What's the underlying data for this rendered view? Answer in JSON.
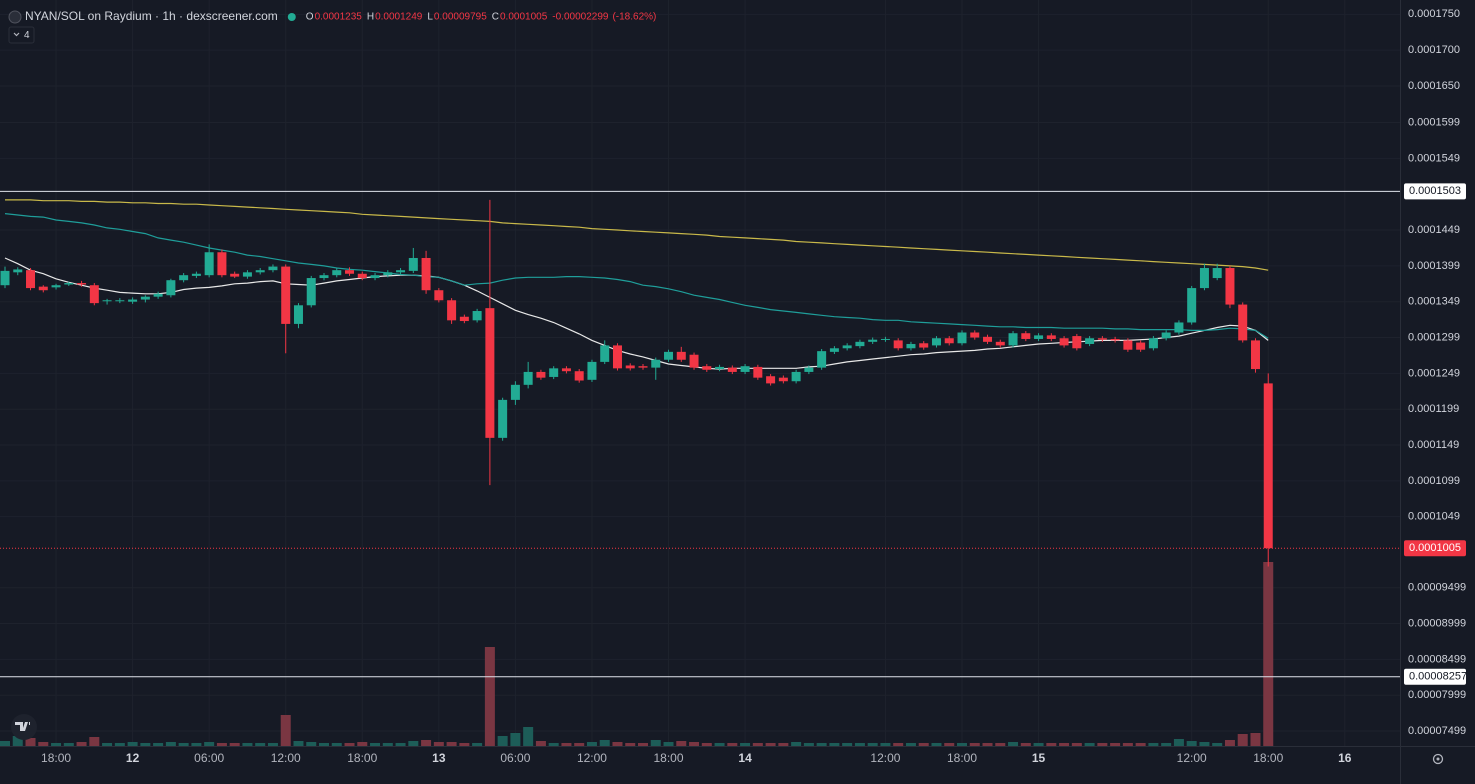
{
  "chart_data": {
    "type": "candlestick",
    "title": "NYAN/SOL on Raydium · 1h · dexscreener.com",
    "ohlc_labels": [
      "O",
      "H",
      "L",
      "C"
    ],
    "change": -2.299e-05,
    "change_pct": "(-18.62%)",
    "indicator_count": 4,
    "up_color": "#22ab94",
    "down_color": "#f23645",
    "up_volume_color": "#1d5d58",
    "down_volume_color": "#7a3642",
    "grid": true,
    "ylim": [
      7.29e-05,
      0.000177
    ],
    "yticks": [
      {
        "value": 0.000175,
        "label": "0.0001750"
      },
      {
        "value": 0.00017,
        "label": "0.0001700"
      },
      {
        "value": 0.000165,
        "label": "0.0001650"
      },
      0.0001599,
      0.0001549,
      0.0001449,
      0.0001399,
      0.0001349,
      0.0001299,
      0.0001249,
      0.0001199,
      0.0001149,
      0.0001099,
      0.0001049,
      9.499e-05,
      8.999e-05,
      8.499e-05,
      7.999e-05,
      7.499e-05
    ],
    "price_lines": [
      0.0001503,
      8.257e-05
    ],
    "categories": [
      null,
      null,
      null,
      null,
      "18:00",
      null,
      null,
      null,
      null,
      null,
      "12",
      null,
      null,
      null,
      null,
      null,
      "06:00",
      null,
      null,
      null,
      null,
      null,
      "12:00",
      null,
      null,
      null,
      null,
      null,
      "18:00",
      null,
      null,
      null,
      null,
      null,
      "13",
      null,
      null,
      null,
      null,
      null,
      "06:00",
      null,
      null,
      null,
      null,
      null,
      "12:00",
      null,
      null,
      null,
      null,
      null,
      "18:00",
      null,
      null,
      null,
      null,
      null,
      "14",
      null,
      null,
      null,
      null,
      null,
      null,
      null,
      null,
      null,
      null,
      "12:00",
      null,
      null,
      null,
      null,
      null,
      "18:00",
      null,
      null,
      null,
      null,
      null,
      "15",
      null,
      null,
      null,
      null,
      null,
      null,
      null,
      null,
      null,
      null,
      null,
      "12:00",
      null,
      null,
      null,
      null,
      null,
      "18:00",
      null,
      null,
      null,
      null,
      null,
      "16"
    ],
    "candles": [
      [
        0.0001372,
        0.0001398,
        0.0001368,
        0.0001392
      ],
      [
        0.000139,
        0.0001397,
        0.0001386,
        0.0001394
      ],
      [
        0.0001393,
        0.0001396,
        0.0001365,
        0.0001368
      ],
      [
        0.000137,
        0.0001372,
        0.0001362,
        0.0001365
      ],
      [
        0.0001369,
        0.0001374,
        0.0001366,
        0.0001372
      ],
      [
        0.0001373,
        0.0001377,
        0.0001371,
        0.0001375
      ],
      [
        0.0001375,
        0.0001378,
        0.000137,
        0.0001373
      ],
      [
        0.0001372,
        0.0001375,
        0.0001344,
        0.0001347
      ],
      [
        0.000135,
        0.0001353,
        0.0001345,
        0.0001351
      ],
      [
        0.000135,
        0.0001354,
        0.0001347,
        0.0001351
      ],
      [
        0.0001349,
        0.0001355,
        0.0001346,
        0.0001352
      ],
      [
        0.0001352,
        0.0001358,
        0.0001348,
        0.0001356
      ],
      [
        0.0001356,
        0.0001363,
        0.0001353,
        0.000136
      ],
      [
        0.0001358,
        0.0001381,
        0.0001355,
        0.0001379
      ],
      [
        0.0001379,
        0.0001389,
        0.0001376,
        0.0001386
      ],
      [
        0.0001385,
        0.0001391,
        0.0001382,
        0.0001388
      ],
      [
        0.0001386,
        0.0001429,
        0.0001383,
        0.0001418
      ],
      [
        0.0001418,
        0.0001422,
        0.0001383,
        0.0001386
      ],
      [
        0.0001388,
        0.0001391,
        0.0001382,
        0.0001384
      ],
      [
        0.0001384,
        0.0001393,
        0.0001381,
        0.000139
      ],
      [
        0.000139,
        0.0001396,
        0.0001387,
        0.0001393
      ],
      [
        0.0001393,
        0.0001401,
        0.000139,
        0.0001398
      ],
      [
        0.0001398,
        0.0001401,
        0.0001277,
        0.0001318
      ],
      [
        0.0001318,
        0.0001347,
        0.0001312,
        0.0001344
      ],
      [
        0.0001344,
        0.0001385,
        0.0001341,
        0.0001382
      ],
      [
        0.0001382,
        0.0001389,
        0.0001379,
        0.0001386
      ],
      [
        0.0001386,
        0.0001396,
        0.0001383,
        0.0001393
      ],
      [
        0.0001393,
        0.0001397,
        0.0001385,
        0.0001388
      ],
      [
        0.0001388,
        0.0001391,
        0.0001379,
        0.0001382
      ],
      [
        0.0001382,
        0.0001389,
        0.0001379,
        0.0001386
      ],
      [
        0.0001386,
        0.0001393,
        0.0001383,
        0.000139
      ],
      [
        0.000139,
        0.0001396,
        0.0001386,
        0.0001393
      ],
      [
        0.0001392,
        0.0001424,
        0.0001389,
        0.000141
      ],
      [
        0.000141,
        0.000142,
        0.000136,
        0.0001365
      ],
      [
        0.0001365,
        0.0001368,
        0.0001348,
        0.0001351
      ],
      [
        0.0001351,
        0.0001354,
        0.0001318,
        0.0001323
      ],
      [
        0.0001328,
        0.0001331,
        0.0001319,
        0.0001322
      ],
      [
        0.0001323,
        0.0001339,
        0.000132,
        0.0001336
      ],
      [
        0.000134,
        0.0001491,
        0.0001093,
        0.0001159
      ],
      [
        0.0001159,
        0.0001215,
        0.0001155,
        0.0001212
      ],
      [
        0.0001212,
        0.0001238,
        0.0001205,
        0.0001233
      ],
      [
        0.0001233,
        0.0001265,
        0.0001228,
        0.0001251
      ],
      [
        0.0001251,
        0.0001254,
        0.000124,
        0.0001243
      ],
      [
        0.0001244,
        0.0001259,
        0.0001241,
        0.0001256
      ],
      [
        0.0001256,
        0.0001259,
        0.0001249,
        0.0001252
      ],
      [
        0.0001252,
        0.0001255,
        0.0001236,
        0.0001239
      ],
      [
        0.000124,
        0.0001268,
        0.0001237,
        0.0001265
      ],
      [
        0.0001265,
        0.0001295,
        0.0001262,
        0.0001288
      ],
      [
        0.0001288,
        0.0001291,
        0.0001253,
        0.0001256
      ],
      [
        0.000126,
        0.0001263,
        0.0001253,
        0.0001256
      ],
      [
        0.0001259,
        0.0001262,
        0.0001254,
        0.0001257
      ],
      [
        0.0001257,
        0.0001271,
        0.000124,
        0.0001268
      ],
      [
        0.0001268,
        0.0001282,
        0.0001265,
        0.0001279
      ],
      [
        0.0001279,
        0.0001286,
        0.0001265,
        0.0001268
      ],
      [
        0.0001275,
        0.0001278,
        0.0001254,
        0.0001257
      ],
      [
        0.0001259,
        0.0001262,
        0.0001251,
        0.0001254
      ],
      [
        0.0001255,
        0.0001261,
        0.0001252,
        0.0001258
      ],
      [
        0.0001257,
        0.000126,
        0.0001248,
        0.0001251
      ],
      [
        0.0001251,
        0.0001262,
        0.0001248,
        0.0001259
      ],
      [
        0.0001258,
        0.0001261,
        0.000124,
        0.0001243
      ],
      [
        0.0001245,
        0.0001248,
        0.0001232,
        0.0001235
      ],
      [
        0.0001243,
        0.0001246,
        0.0001235,
        0.0001238
      ],
      [
        0.0001238,
        0.0001254,
        0.0001235,
        0.0001251
      ],
      [
        0.0001251,
        0.000126,
        0.0001248,
        0.0001257
      ],
      [
        0.0001257,
        0.0001283,
        0.0001254,
        0.000128
      ],
      [
        0.0001279,
        0.0001287,
        0.0001276,
        0.0001284
      ],
      [
        0.0001284,
        0.0001291,
        0.0001281,
        0.0001288
      ],
      [
        0.0001287,
        0.0001296,
        0.0001284,
        0.0001293
      ],
      [
        0.0001293,
        0.0001299,
        0.000129,
        0.0001296
      ],
      [
        0.0001296,
        0.00013,
        0.0001293,
        0.0001297
      ],
      [
        0.0001295,
        0.0001298,
        0.0001281,
        0.0001284
      ],
      [
        0.0001284,
        0.0001293,
        0.0001281,
        0.000129
      ],
      [
        0.0001291,
        0.0001294,
        0.0001282,
        0.0001285
      ],
      [
        0.0001288,
        0.0001301,
        0.0001285,
        0.0001298
      ],
      [
        0.0001298,
        0.0001301,
        0.0001288,
        0.0001291
      ],
      [
        0.0001291,
        0.0001309,
        0.0001288,
        0.0001306
      ],
      [
        0.0001306,
        0.0001309,
        0.0001296,
        0.0001299
      ],
      [
        0.00013,
        0.0001303,
        0.000129,
        0.0001293
      ],
      [
        0.0001293,
        0.0001296,
        0.0001285,
        0.0001288
      ],
      [
        0.0001288,
        0.0001308,
        0.0001285,
        0.0001305
      ],
      [
        0.0001305,
        0.0001308,
        0.0001294,
        0.0001297
      ],
      [
        0.0001297,
        0.0001305,
        0.0001294,
        0.0001302
      ],
      [
        0.0001302,
        0.0001305,
        0.0001294,
        0.0001297
      ],
      [
        0.0001298,
        0.0001301,
        0.0001285,
        0.0001288
      ],
      [
        0.0001301,
        0.0001304,
        0.0001281,
        0.0001284
      ],
      [
        0.000129,
        0.0001301,
        0.0001287,
        0.0001298
      ],
      [
        0.0001298,
        0.0001301,
        0.0001293,
        0.0001296
      ],
      [
        0.0001297,
        0.00013,
        0.0001292,
        0.0001295
      ],
      [
        0.0001295,
        0.0001298,
        0.0001279,
        0.0001282
      ],
      [
        0.0001292,
        0.0001295,
        0.0001279,
        0.0001282
      ],
      [
        0.0001284,
        0.0001301,
        0.0001281,
        0.0001298
      ],
      [
        0.0001298,
        0.0001309,
        0.0001295,
        0.0001306
      ],
      [
        0.0001306,
        0.0001323,
        0.0001303,
        0.000132
      ],
      [
        0.000132,
        0.0001371,
        0.0001317,
        0.0001368
      ],
      [
        0.0001368,
        0.0001402,
        0.0001365,
        0.0001396
      ],
      [
        0.0001382,
        0.0001402,
        0.0001379,
        0.0001396
      ],
      [
        0.0001396,
        0.0001399,
        0.000134,
        0.0001345
      ],
      [
        0.0001345,
        0.0001348,
        0.0001292,
        0.0001295
      ],
      [
        0.0001295,
        0.0001298,
        0.000125,
        0.0001255
      ],
      [
        0.0001235,
        0.0001249,
        9.795e-05,
        0.0001005
      ],
      null,
      null,
      null,
      null,
      null,
      null
    ],
    "volume": [
      5,
      10,
      8,
      4,
      3,
      3,
      4,
      9,
      3,
      3,
      4,
      3,
      3,
      4,
      3,
      3,
      4,
      3,
      3,
      3,
      3,
      3,
      31,
      5,
      4,
      3,
      3,
      3,
      4,
      3,
      3,
      3,
      5,
      6,
      4,
      4,
      3,
      3,
      99,
      10,
      13,
      19,
      5,
      3,
      3,
      3,
      4,
      6,
      4,
      3,
      3,
      6,
      4,
      5,
      4,
      3,
      3,
      3,
      3,
      3,
      3,
      3,
      4,
      3,
      3,
      3,
      3,
      3,
      3,
      3,
      3,
      3,
      3,
      3,
      3,
      3,
      3,
      3,
      3,
      4,
      3,
      3,
      3,
      3,
      3,
      3,
      3,
      3,
      3,
      3,
      3,
      3,
      7,
      5,
      4,
      3,
      6,
      12,
      13,
      184,
      null,
      null,
      null,
      null,
      null,
      null
    ],
    "series": [
      {
        "color": "#e8e8e8",
        "values": [
          0.000141,
          0.0001402,
          0.0001393,
          0.0001388,
          0.0001381,
          0.0001376,
          0.0001372,
          0.0001368,
          0.0001365,
          0.0001362,
          0.0001361,
          0.000136,
          0.000136,
          0.0001362,
          0.0001366,
          0.0001368,
          0.0001369,
          0.0001371,
          0.0001374,
          0.0001375,
          0.0001377,
          0.0001378,
          0.0001374,
          0.0001373,
          0.0001372,
          0.0001375,
          0.0001378,
          0.000138,
          0.0001382,
          0.0001384,
          0.0001385,
          0.0001386,
          0.0001386,
          0.0001385,
          0.0001383,
          0.0001378,
          0.0001372,
          0.0001364,
          0.0001355,
          0.0001346,
          0.0001337,
          0.0001331,
          0.0001326,
          0.000132,
          0.0001312,
          0.0001304,
          0.0001295,
          0.0001288,
          0.0001281,
          0.0001276,
          0.0001272,
          0.0001267,
          0.0001262,
          0.000126,
          0.0001258,
          0.0001256,
          0.0001255,
          0.0001256,
          0.0001256,
          0.0001256,
          0.0001256,
          0.0001256,
          0.0001256,
          0.0001258,
          0.0001259,
          0.0001262,
          0.0001265,
          0.0001267,
          0.0001269,
          0.0001271,
          0.0001273,
          0.0001275,
          0.0001276,
          0.0001278,
          0.0001279,
          0.000128,
          0.0001281,
          0.0001283,
          0.0001284,
          0.0001286,
          0.0001288,
          0.000129,
          0.0001291,
          0.0001292,
          0.0001293,
          0.0001294,
          0.0001295,
          0.0001295,
          0.0001295,
          0.0001296,
          0.0001297,
          0.0001299,
          0.0001301,
          0.0001305,
          0.0001309,
          0.0001313,
          0.0001316,
          0.0001315,
          0.0001309,
          0.0001295,
          null,
          null,
          null,
          null,
          null,
          null
        ]
      },
      {
        "color": "#1f9e9a",
        "values": [
          0.0001472,
          0.000147,
          0.0001468,
          0.0001467,
          0.0001463,
          0.0001461,
          0.0001459,
          0.0001456,
          0.0001452,
          0.000145,
          0.0001447,
          0.0001444,
          0.0001438,
          0.0001435,
          0.0001432,
          0.0001428,
          0.0001424,
          0.0001421,
          0.0001418,
          0.0001414,
          0.0001412,
          0.0001409,
          0.0001406,
          0.0001403,
          0.0001401,
          0.0001399,
          0.0001396,
          0.0001394,
          0.0001393,
          0.0001391,
          0.0001389,
          0.0001387,
          0.0001386,
          0.0001384,
          0.0001383,
          0.0001378,
          0.0001372,
          0.0001374,
          0.0001375,
          0.0001379,
          0.0001382,
          0.0001383,
          0.0001383,
          0.0001383,
          0.0001384,
          0.0001384,
          0.0001383,
          0.0001382,
          0.000138,
          0.0001377,
          0.0001372,
          0.000137,
          0.0001367,
          0.0001363,
          0.0001358,
          0.0001355,
          0.0001352,
          0.0001348,
          0.0001344,
          0.0001341,
          0.0001338,
          0.0001336,
          0.0001334,
          0.0001332,
          0.000133,
          0.0001328,
          0.0001327,
          0.0001326,
          0.0001324,
          0.0001323,
          0.0001323,
          0.0001321,
          0.000132,
          0.0001319,
          0.0001318,
          0.0001317,
          0.0001316,
          0.0001315,
          0.0001314,
          0.0001314,
          0.0001313,
          0.0001313,
          0.0001313,
          0.0001312,
          0.0001312,
          0.0001312,
          0.0001312,
          0.0001311,
          0.0001311,
          0.000131,
          0.000131,
          0.000131,
          0.000131,
          0.0001309,
          0.0001309,
          0.000131,
          0.0001312,
          0.0001311,
          0.0001309,
          0.0001298,
          null,
          null,
          null,
          null,
          null,
          null
        ]
      },
      {
        "color": "#c9b94a",
        "values": [
          0.0001491,
          0.0001491,
          0.0001491,
          0.000149,
          0.000149,
          0.000149,
          0.0001489,
          0.0001489,
          0.0001488,
          0.0001488,
          0.0001487,
          0.0001487,
          0.0001486,
          0.0001486,
          0.0001485,
          0.0001485,
          0.0001484,
          0.0001483,
          0.0001482,
          0.0001481,
          0.000148,
          0.0001479,
          0.0001478,
          0.0001477,
          0.0001476,
          0.0001475,
          0.0001474,
          0.0001473,
          0.0001471,
          0.000147,
          0.0001469,
          0.0001468,
          0.0001467,
          0.0001466,
          0.0001465,
          0.0001464,
          0.0001463,
          0.0001462,
          0.0001461,
          0.0001459,
          0.0001458,
          0.0001457,
          0.0001456,
          0.0001455,
          0.0001454,
          0.0001453,
          0.0001451,
          0.000145,
          0.0001449,
          0.0001448,
          0.0001447,
          0.0001446,
          0.0001445,
          0.0001444,
          0.0001443,
          0.0001442,
          0.000144,
          0.0001439,
          0.0001438,
          0.0001437,
          0.0001436,
          0.0001435,
          0.0001433,
          0.0001432,
          0.0001431,
          0.000143,
          0.0001429,
          0.0001428,
          0.0001427,
          0.0001426,
          0.0001425,
          0.0001424,
          0.0001423,
          0.0001422,
          0.0001421,
          0.000142,
          0.0001419,
          0.0001418,
          0.0001417,
          0.0001416,
          0.0001415,
          0.0001414,
          0.0001413,
          0.0001412,
          0.0001411,
          0.000141,
          0.0001409,
          0.0001408,
          0.0001407,
          0.0001406,
          0.0001405,
          0.0001404,
          0.0001403,
          0.0001402,
          0.0001401,
          0.00014,
          0.0001399,
          0.0001398,
          0.0001396,
          0.0001393,
          null,
          null,
          null,
          null,
          null,
          null
        ]
      }
    ]
  }
}
